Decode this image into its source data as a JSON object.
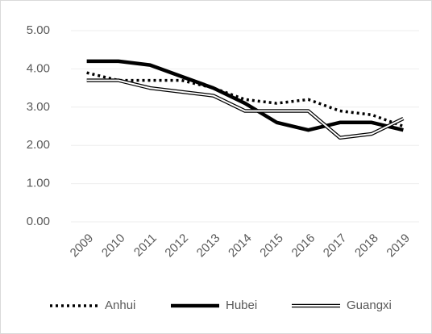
{
  "chart_data": {
    "type": "line",
    "categories": [
      "2009",
      "2010",
      "2011",
      "2012",
      "2013",
      "2014",
      "2015",
      "2016",
      "2017",
      "2018",
      "2019"
    ],
    "series": [
      {
        "name": "Anhui",
        "color": "#000000",
        "line_style": "dotted",
        "values": [
          3.9,
          3.7,
          3.7,
          3.7,
          3.5,
          3.2,
          3.1,
          3.2,
          2.9,
          2.8,
          2.5
        ]
      },
      {
        "name": "Hubei",
        "color": "#000000",
        "line_style": "thick",
        "values": [
          4.2,
          4.2,
          4.1,
          3.8,
          3.5,
          3.1,
          2.6,
          2.4,
          2.6,
          2.6,
          2.4
        ]
      },
      {
        "name": "Guangxi",
        "color": "#000000",
        "line_style": "double",
        "values": [
          3.7,
          3.7,
          3.5,
          3.4,
          3.3,
          2.9,
          2.9,
          2.9,
          2.2,
          2.3,
          2.7
        ]
      }
    ],
    "ylim": [
      0,
      5
    ],
    "yticks": [
      {
        "value": 0,
        "label": "0.00"
      },
      {
        "value": 1,
        "label": "1.00"
      },
      {
        "value": 2,
        "label": "2.00"
      },
      {
        "value": 3,
        "label": "3.00"
      },
      {
        "value": 4,
        "label": "4.00"
      },
      {
        "value": 5,
        "label": "5.00"
      }
    ],
    "grid": true,
    "legend": "bottom"
  }
}
